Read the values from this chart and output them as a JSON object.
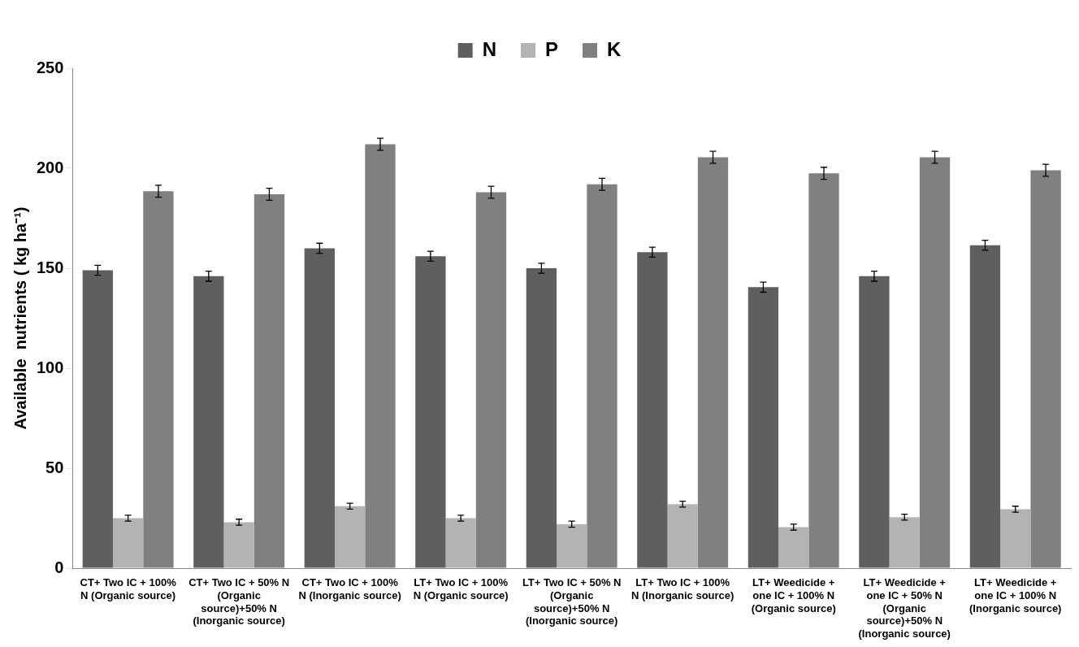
{
  "chart_data": {
    "type": "bar",
    "ylabel": "Available  nutrients ( kg ha⁻¹)",
    "categories": [
      "CT+ Two IC + 100% N (Organic source)",
      "CT+ Two IC + 50% N (Organic source)+50% N (Inorganic source)",
      "CT+ Two IC + 100% N (Inorganic source)",
      "LT+ Two IC + 100% N (Organic source)",
      "LT+ Two IC + 50% N (Organic source)+50% N (Inorganic source)",
      "LT+ Two IC + 100% N (Inorganic source)",
      "LT+ Weedicide + one IC + 100% N (Organic source)",
      "LT+ Weedicide + one IC + 50% N (Organic source)+50% N (Inorganic source)",
      "LT+ Weedicide + one IC + 100% N (Inorganic source)"
    ],
    "series": [
      {
        "name": "N",
        "color": "#5f5f5f",
        "values": [
          149,
          146,
          160,
          156,
          150,
          158,
          140.5,
          146,
          161.5
        ],
        "errors": [
          2.5,
          2.5,
          2.5,
          2.5,
          2.5,
          2.5,
          2.5,
          2.5,
          2.5
        ]
      },
      {
        "name": "P",
        "color": "#b3b3b3",
        "values": [
          25,
          23,
          31,
          25,
          22,
          32,
          20.5,
          25.5,
          29.5
        ],
        "errors": [
          1.5,
          1.5,
          1.5,
          1.5,
          1.5,
          1.5,
          1.5,
          1.5,
          1.5
        ]
      },
      {
        "name": "K",
        "color": "#808080",
        "values": [
          188.5,
          187,
          212,
          188,
          192,
          205.5,
          197.5,
          205.5,
          199
        ],
        "errors": [
          3,
          3,
          3,
          3,
          3,
          3,
          3,
          3,
          3
        ]
      }
    ],
    "ylim": [
      0,
      250
    ],
    "yticks": [
      0,
      50,
      100,
      150,
      200,
      250
    ],
    "grid": false,
    "legend": "top"
  }
}
